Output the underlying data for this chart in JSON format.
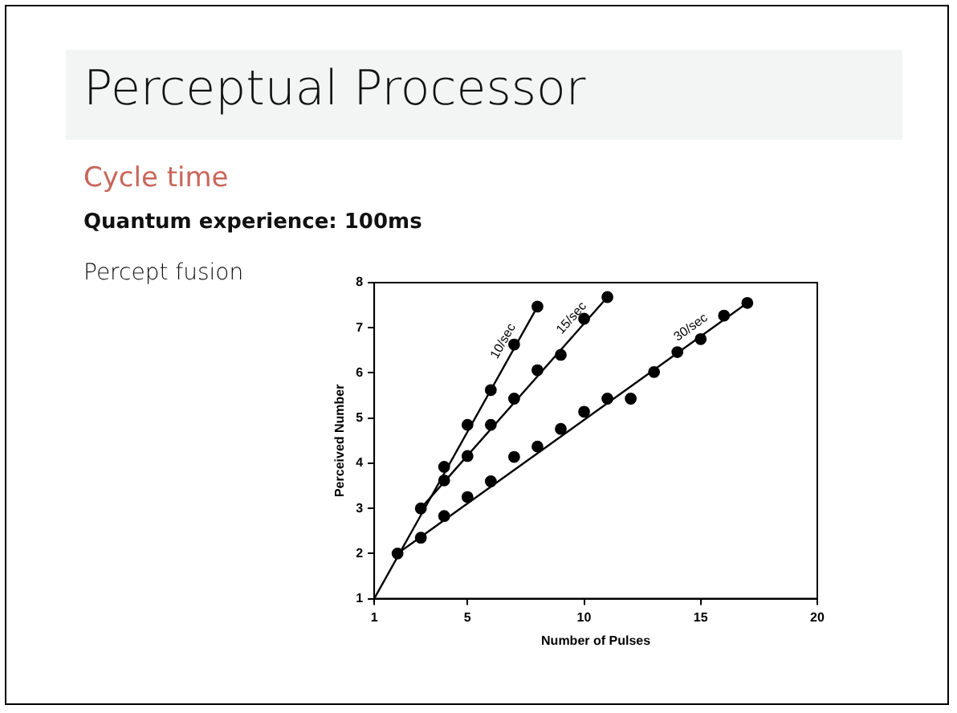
{
  "chart_data": {
    "type": "scatter",
    "title": "Perceptual Processor",
    "subtitle": "Cycle time",
    "annotations": [
      "Quantum experience: 100ms",
      "Percept fusion"
    ],
    "xlabel": "Number of Pulses",
    "ylabel": "Perceived Number",
    "xlim": [
      1,
      20
    ],
    "xticks": [
      1,
      5,
      10,
      15,
      20
    ],
    "ylim": [
      1,
      8
    ],
    "yticks": [
      1,
      2,
      3,
      4,
      5,
      6,
      7,
      8
    ],
    "grid": false,
    "legend": false,
    "marker": "circle",
    "series": [
      {
        "color": "#000000",
        "x": [
          2,
          3,
          4,
          5,
          6,
          7,
          8
        ],
        "values": [
          2.0,
          3.0,
          3.92,
          4.85,
          5.62,
          6.63,
          7.47
        ]
      },
      {
        "color": "#000000",
        "x": [
          4,
          5,
          6,
          7,
          8,
          9,
          10,
          11
        ],
        "values": [
          3.62,
          4.16,
          4.85,
          5.43,
          6.06,
          6.4,
          7.2,
          7.68
        ]
      },
      {
        "color": "#000000",
        "x": [
          3,
          4,
          5,
          6,
          7,
          8,
          9,
          10,
          11,
          12,
          13,
          14,
          15,
          16,
          17
        ],
        "values": [
          2.35,
          2.83,
          3.25,
          3.6,
          4.14,
          4.37,
          4.76,
          5.14,
          5.43,
          5.43,
          6.02,
          6.46,
          6.75,
          7.27,
          7.55
        ]
      },
      {
        "type": "line",
        "marker": "none",
        "name": "10/sec",
        "color": "#000000",
        "x": [
          1,
          8
        ],
        "values": [
          1,
          7.47
        ]
      },
      {
        "type": "line",
        "marker": "none",
        "name": "15/sec",
        "color": "#000000",
        "x": [
          3,
          11
        ],
        "values": [
          3,
          7.68
        ]
      },
      {
        "type": "line",
        "marker": "none",
        "name": "30/sec",
        "color": "#000000",
        "x": [
          2,
          17
        ],
        "values": [
          2,
          7.55
        ]
      }
    ]
  }
}
